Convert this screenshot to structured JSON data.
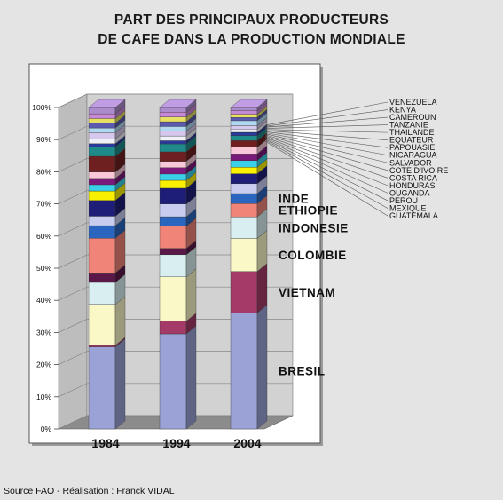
{
  "title_lines": [
    "PART DES PRINCIPAUX PRODUCTEURS",
    "DE CAFE DANS LA PRODUCTION MONDIALE"
  ],
  "source": "Source FAO - Réalisation : Franck VIDAL",
  "colors": {
    "background": "#e4e4e4",
    "panel": "#ffffff",
    "wall": "#d2d2d2",
    "floor": "#8c8c8c"
  },
  "chart_data": {
    "type": "bar",
    "stacked": true,
    "three_d": true,
    "categories": [
      "1984",
      "1994",
      "2004"
    ],
    "y_ticks": [
      "0%",
      "10%",
      "20%",
      "30%",
      "40%",
      "50%",
      "60%",
      "70%",
      "80%",
      "90%",
      "100%"
    ],
    "ylim": [
      0,
      100
    ],
    "series": [
      {
        "name": "BRESIL",
        "color": "#9aa2d6",
        "values": [
          26,
          30,
          35
        ]
      },
      {
        "name": "VIETNAM",
        "color": "#a33a68",
        "values": [
          0.5,
          4,
          12.5
        ]
      },
      {
        "name": "COLOMBIE",
        "color": "#fbf8c8",
        "values": [
          13,
          14,
          10
        ]
      },
      {
        "name": "INDONESIE",
        "color": "#d8eef0",
        "values": [
          7,
          7,
          6.5
        ]
      },
      {
        "name": "",
        "color": "#5a1848",
        "values": [
          3,
          2,
          0
        ]
      },
      {
        "name": "",
        "color": "#f08478",
        "values": [
          11,
          7,
          0
        ]
      },
      {
        "name": "ETHIOPIE",
        "color": "#f08478",
        "values": [
          0,
          0,
          4
        ]
      },
      {
        "name": "INDE",
        "color": "#2a66c0",
        "values": [
          4,
          3,
          3
        ]
      },
      {
        "name": "GUATEMALA",
        "color": "#c8cdf0",
        "values": [
          3,
          4,
          3
        ]
      },
      {
        "name": "MEXIQUE",
        "color": "#1e1e78",
        "values": [
          5,
          5,
          3
        ]
      },
      {
        "name": "PEROU",
        "color": "#f8f000",
        "values": [
          3,
          2.5,
          2
        ]
      },
      {
        "name": "OUGANDA",
        "color": "#3ad0e8",
        "values": [
          2,
          2,
          2
        ]
      },
      {
        "name": "HONDURAS",
        "color": "#7a1a7a",
        "values": [
          2,
          2,
          2
        ]
      },
      {
        "name": "COSTA RICA",
        "color": "#f8c8d8",
        "values": [
          2,
          2,
          2
        ]
      },
      {
        "name": "COTE D'IVOIRE",
        "color": "#6e2020",
        "values": [
          5,
          3,
          2
        ]
      },
      {
        "name": "SALVADOR",
        "color": "#1e8a8a",
        "values": [
          3,
          2.5,
          1.5
        ]
      },
      {
        "name": "NICARAGUA",
        "color": "#2a3a9a",
        "values": [
          1,
          1,
          1
        ]
      },
      {
        "name": "PAPOUASIE",
        "color": "#f0f0f8",
        "values": [
          1.5,
          1.5,
          1
        ]
      },
      {
        "name": "EQUATEUR",
        "color": "#d6c8ec",
        "values": [
          2,
          1.5,
          1
        ]
      },
      {
        "name": "THAILANDE",
        "color": "#b0d8f0",
        "values": [
          1.5,
          1.5,
          1.5
        ]
      },
      {
        "name": "TANZANIE",
        "color": "#5a5ab0",
        "values": [
          1.5,
          1.5,
          1
        ]
      },
      {
        "name": "CAMEROUN",
        "color": "#e8e060",
        "values": [
          1.5,
          1.5,
          1
        ]
      },
      {
        "name": "KENYA",
        "color": "#c888d8",
        "values": [
          1.5,
          1.5,
          1
        ]
      },
      {
        "name": "VENEZUELA",
        "color": "#ac8ccc",
        "values": [
          2,
          1.5,
          1
        ]
      }
    ],
    "big_labels": [
      "BRESIL",
      "VIETNAM",
      "COLOMBIE",
      "INDONESIE",
      "ETHIOPIE",
      "INDE"
    ],
    "legend_list": [
      "VENEZUELA",
      "KENYA",
      "CAMEROUN",
      "TANZANIE",
      "THAILANDE",
      "EQUATEUR",
      "PAPOUASIE",
      "NICARAGUA",
      "SALVADOR",
      "COTE D'IVOIRE",
      "COSTA RICA",
      "HONDURAS",
      "OUGANDA",
      "PEROU",
      "MEXIQUE",
      "GUATEMALA"
    ]
  }
}
